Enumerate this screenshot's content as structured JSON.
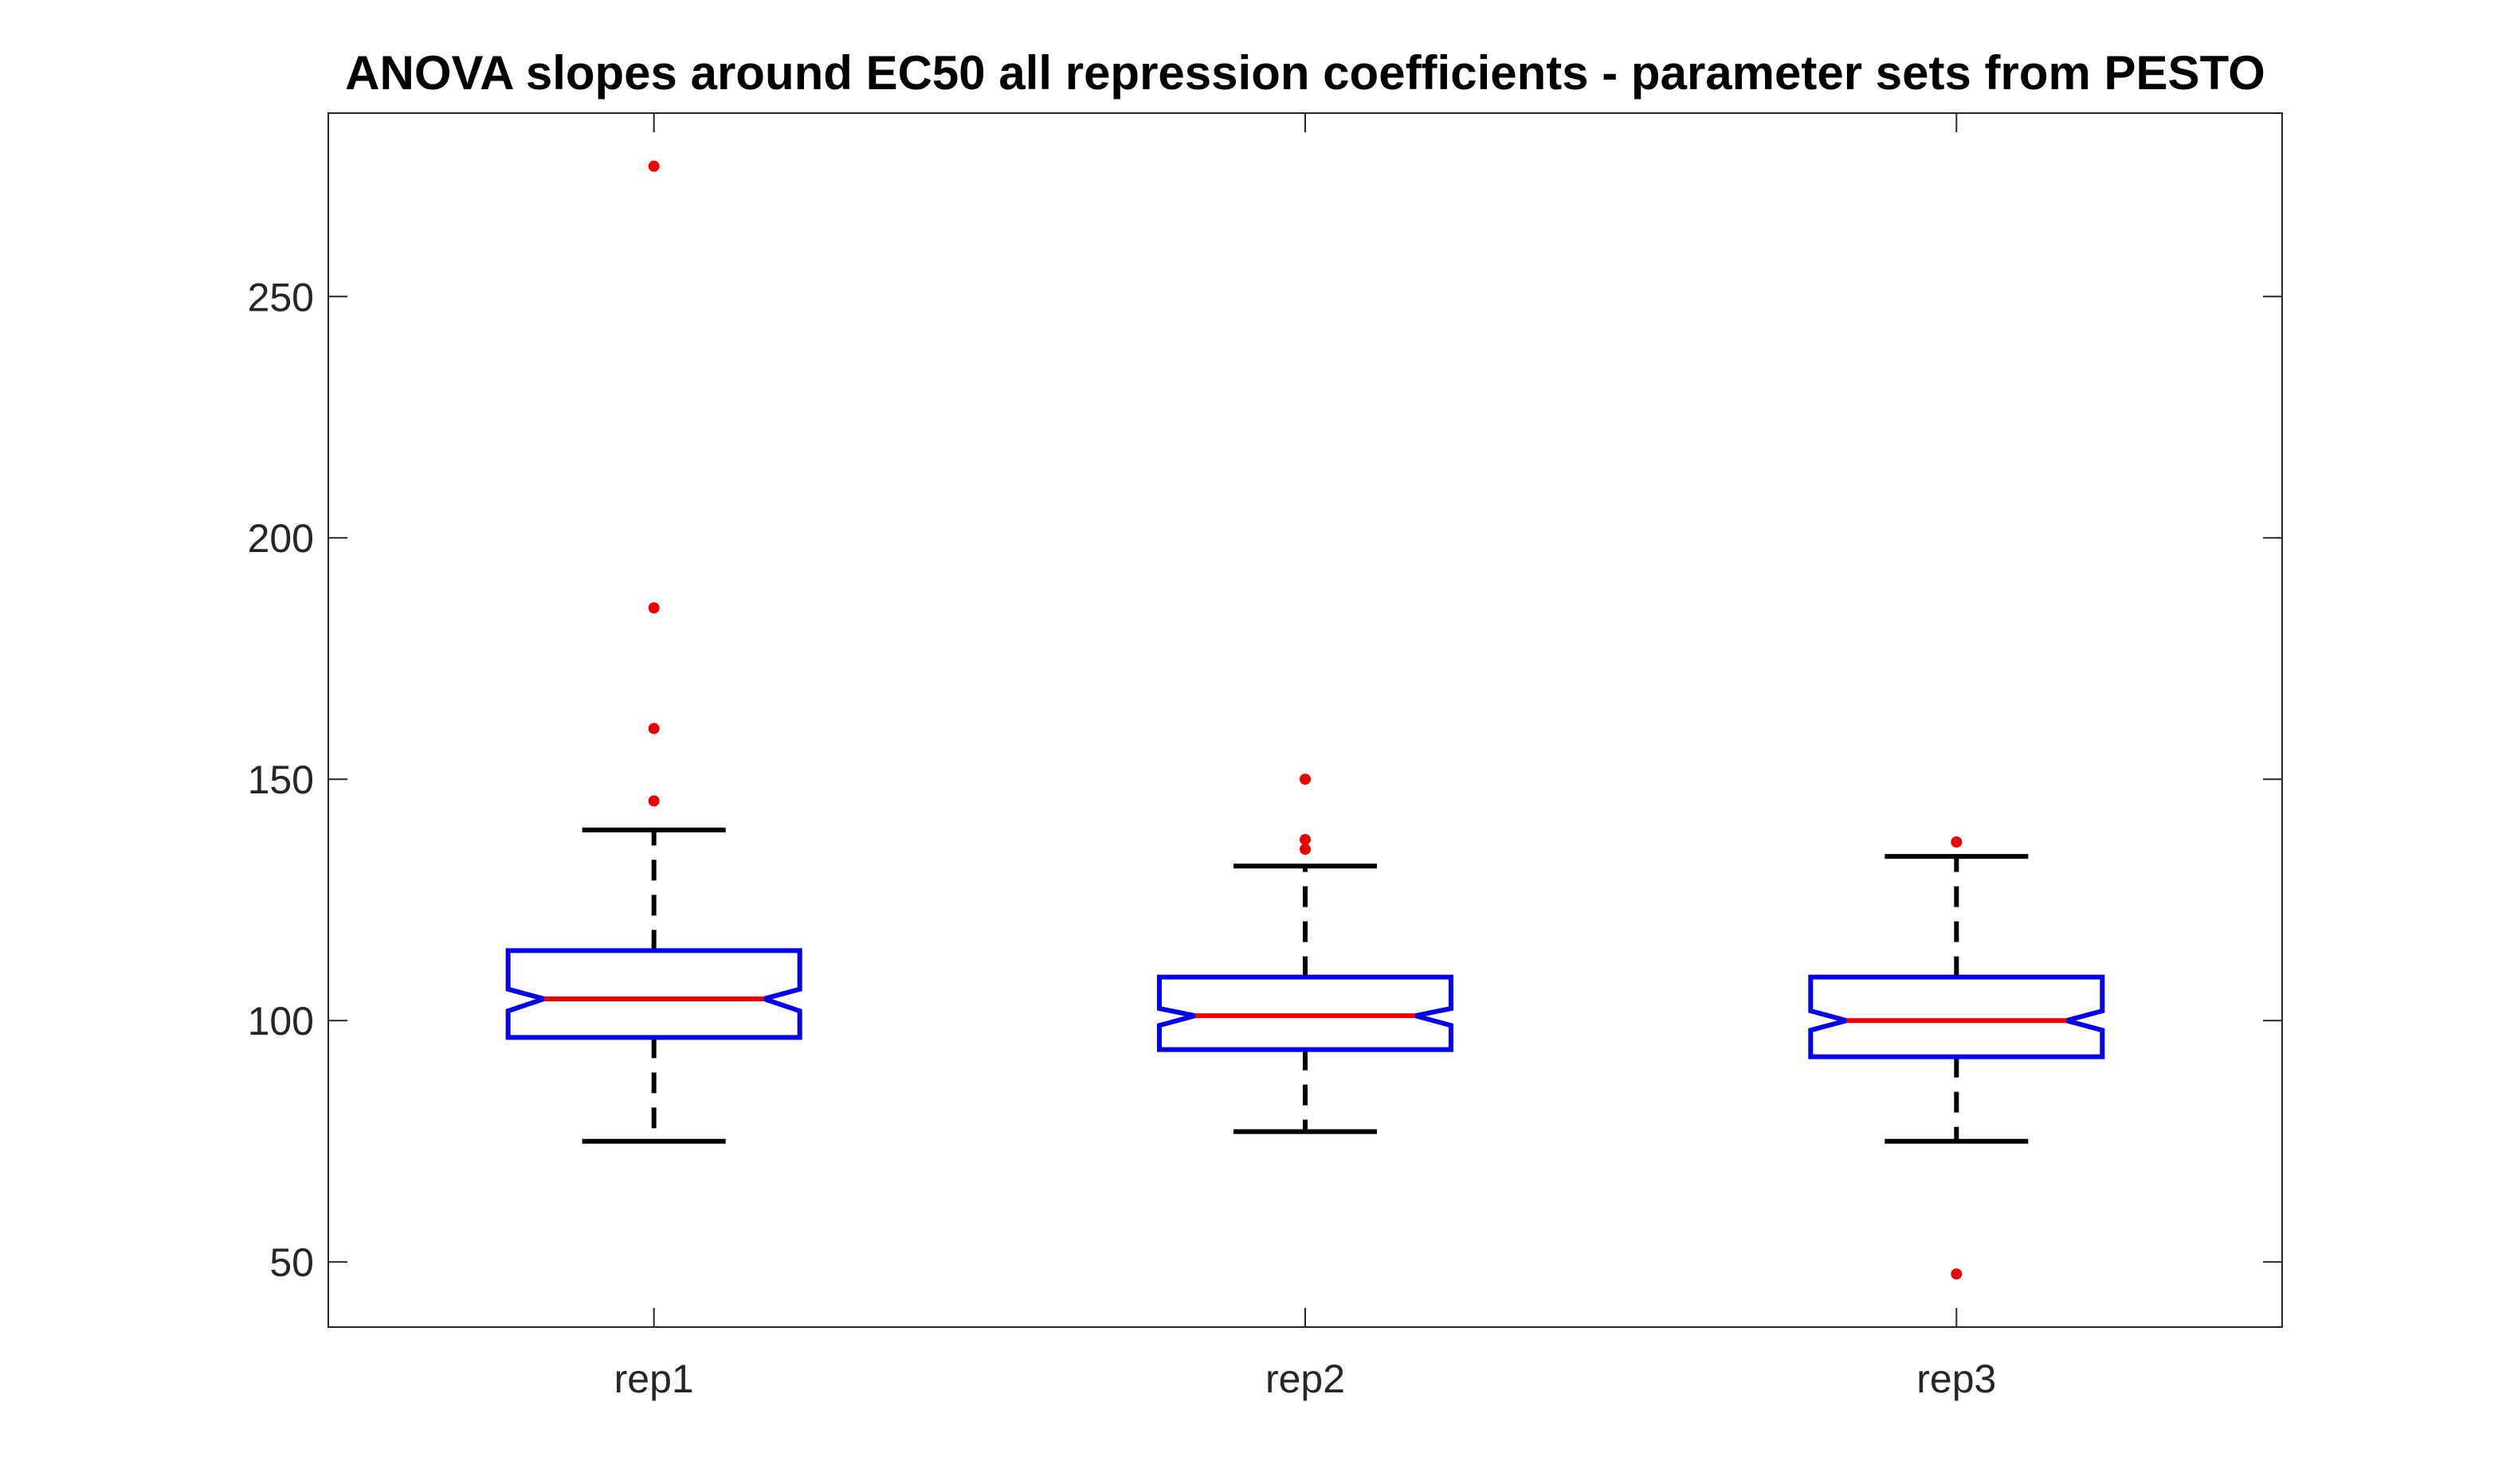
{
  "chart_data": {
    "type": "boxplot",
    "title": "ANOVA slopes around EC50 all repression coefficients - parameter sets from PESTO",
    "xlabel": "",
    "ylabel": "",
    "ylim": [
      36.5,
      288
    ],
    "yticks": [
      50,
      100,
      150,
      200,
      250
    ],
    "notched": true,
    "grid": false,
    "categories": [
      "rep1",
      "rep2",
      "rep3"
    ],
    "boxes": [
      {
        "category": "rep1",
        "q1": 96.5,
        "median": 104.5,
        "q3": 114.5,
        "notch_low": 102.0,
        "notch_high": 106.5,
        "whisker_low": 75.0,
        "whisker_high": 139.5,
        "outliers": [
          145.5,
          160.5,
          185.5,
          277.0
        ]
      },
      {
        "category": "rep2",
        "q1": 94.0,
        "median": 101.0,
        "q3": 109.0,
        "notch_low": 99.0,
        "notch_high": 102.5,
        "whisker_low": 77.0,
        "whisker_high": 132.0,
        "outliers": [
          135.5,
          137.5,
          150.0
        ]
      },
      {
        "category": "rep3",
        "q1": 92.5,
        "median": 100.0,
        "q3": 109.0,
        "notch_low": 98.0,
        "notch_high": 102.0,
        "whisker_low": 75.0,
        "whisker_high": 134.0,
        "outliers": [
          47.5,
          137.0
        ]
      }
    ],
    "colors": {
      "box": "#0000ee",
      "median": "#ee0000",
      "whisker": "#000000",
      "outlier": "#ee0000",
      "axis": "#262626"
    }
  }
}
